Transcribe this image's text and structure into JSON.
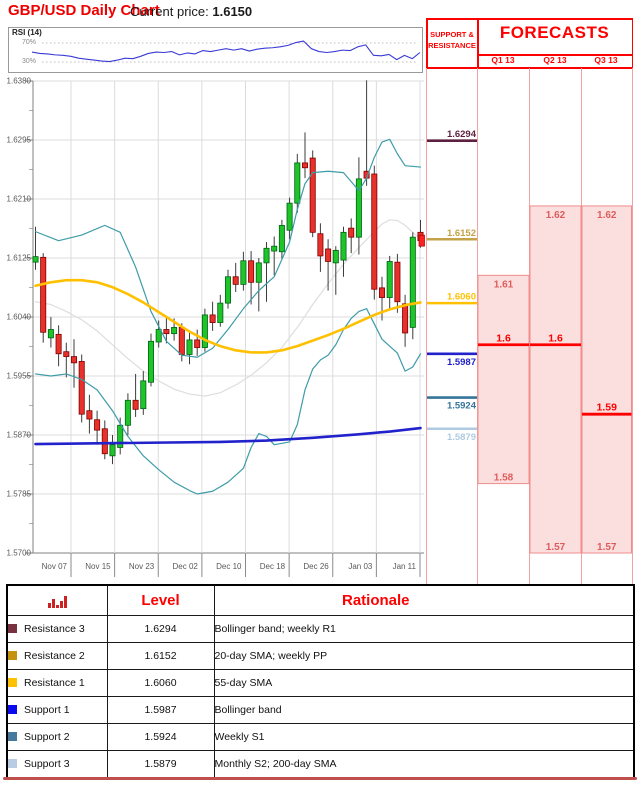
{
  "header": {
    "title": "GBP/USD Daily Chart",
    "price_label": "Current price:",
    "price_value": "1.6150"
  },
  "rsi_panel": {
    "label": "RSI (14)",
    "upper_tick": "70%",
    "lower_tick": "30%",
    "line_color": "#3a3ad6"
  },
  "chart_data": [
    {
      "type": "candlestick",
      "title": "GBP/USD Daily Chart",
      "ylim": [
        1.57,
        1.638
      ],
      "y_ticks": [
        "1.6380",
        "1.6295",
        "1.6210",
        "1.6125",
        "1.6040",
        "1.5955",
        "1.5870",
        "1.5785",
        "1.5700"
      ],
      "x_tick_labels": [
        "Nov 07",
        "Nov 15",
        "Nov 23",
        "Dec 02",
        "Dec 10",
        "Dec 18",
        "Dec 26",
        "Jan 03",
        "Jan 11"
      ],
      "grid": true,
      "current_price": 1.615,
      "up_color": "#1fc32a",
      "up_border": "#006414",
      "down_color": "#e8312a",
      "down_border": "#7f0000",
      "wick_color": "#3c3c3c",
      "candles": [
        [
          1.6119,
          1.617,
          1.6108,
          1.6127
        ],
        [
          1.6126,
          1.6132,
          1.6003,
          1.6018
        ],
        [
          1.601,
          1.604,
          1.5996,
          1.6022
        ],
        [
          1.6015,
          1.6028,
          1.5969,
          1.5987
        ],
        [
          1.599,
          1.6003,
          1.5953,
          1.5983
        ],
        [
          1.5983,
          1.6008,
          1.5938,
          1.5974
        ],
        [
          1.5976,
          1.5986,
          1.5888,
          1.59
        ],
        [
          1.5905,
          1.5928,
          1.5872,
          1.5893
        ],
        [
          1.5892,
          1.5905,
          1.5856,
          1.5877
        ],
        [
          1.5879,
          1.5891,
          1.5835,
          1.5843
        ],
        [
          1.584,
          1.587,
          1.5828,
          1.5856
        ],
        [
          1.5852,
          1.5895,
          1.5842,
          1.5884
        ],
        [
          1.5884,
          1.593,
          1.587,
          1.592
        ],
        [
          1.592,
          1.5958,
          1.5896,
          1.5907
        ],
        [
          1.5908,
          1.5962,
          1.5899,
          1.5948
        ],
        [
          1.5946,
          1.6016,
          1.594,
          1.6005
        ],
        [
          1.6004,
          1.6035,
          1.5996,
          1.6022
        ],
        [
          1.6022,
          1.604,
          1.6002,
          1.6016
        ],
        [
          1.6016,
          1.6038,
          1.6006,
          1.6025
        ],
        [
          1.6025,
          1.6031,
          1.5976,
          1.5986
        ],
        [
          1.5986,
          1.6018,
          1.5972,
          1.6007
        ],
        [
          1.6007,
          1.6022,
          1.5984,
          1.5996
        ],
        [
          1.5996,
          1.6052,
          1.599,
          1.6043
        ],
        [
          1.6043,
          1.6062,
          1.602,
          1.6032
        ],
        [
          1.6032,
          1.6072,
          1.6026,
          1.606
        ],
        [
          1.606,
          1.6108,
          1.6052,
          1.6098
        ],
        [
          1.6098,
          1.6118,
          1.6076,
          1.6087
        ],
        [
          1.6087,
          1.6134,
          1.6078,
          1.6121
        ],
        [
          1.6121,
          1.6135,
          1.6058,
          1.609
        ],
        [
          1.609,
          1.6125,
          1.6048,
          1.6118
        ],
        [
          1.6118,
          1.6148,
          1.6062,
          1.6139
        ],
        [
          1.6135,
          1.6156,
          1.61,
          1.6142
        ],
        [
          1.6134,
          1.618,
          1.6124,
          1.6172
        ],
        [
          1.6165,
          1.6212,
          1.6152,
          1.6204
        ],
        [
          1.6204,
          1.6275,
          1.619,
          1.6262
        ],
        [
          1.6262,
          1.6306,
          1.624,
          1.6255
        ],
        [
          1.6269,
          1.628,
          1.6155,
          1.6162
        ],
        [
          1.616,
          1.6175,
          1.6105,
          1.6128
        ],
        [
          1.6138,
          1.6152,
          1.6078,
          1.612
        ],
        [
          1.6118,
          1.6142,
          1.6072,
          1.6136
        ],
        [
          1.6122,
          1.617,
          1.6098,
          1.6162
        ],
        [
          1.6168,
          1.6182,
          1.6132,
          1.6155
        ],
        [
          1.6155,
          1.627,
          1.613,
          1.6239
        ],
        [
          1.625,
          1.6381,
          1.6229,
          1.624
        ],
        [
          1.6246,
          1.6258,
          1.6065,
          1.608
        ],
        [
          1.6082,
          1.6098,
          1.6035,
          1.6068
        ],
        [
          1.6068,
          1.6128,
          1.6052,
          1.612
        ],
        [
          1.6119,
          1.6131,
          1.6046,
          1.6062
        ],
        [
          1.6059,
          1.6072,
          1.5997,
          1.6017
        ],
        [
          1.6025,
          1.6162,
          1.6008,
          1.6155
        ],
        [
          1.6162,
          1.618,
          1.614,
          1.615
        ]
      ],
      "overlays": [
        {
          "name": "sma-20",
          "color": "#dedede",
          "width": 1.2,
          "points": [
            [
              0,
              1.6062
            ],
            [
              2,
              1.6058
            ],
            [
              4,
              1.6048
            ],
            [
              6,
              1.6036
            ],
            [
              8,
              1.602
            ],
            [
              10,
              1.6
            ],
            [
              12,
              1.598
            ],
            [
              14,
              1.5962
            ],
            [
              16,
              1.5948
            ],
            [
              18,
              1.5936
            ],
            [
              20,
              1.5929
            ],
            [
              22,
              1.5926
            ],
            [
              24,
              1.5931
            ],
            [
              26,
              1.5942
            ],
            [
              28,
              1.5956
            ],
            [
              30,
              1.5974
            ],
            [
              32,
              1.5996
            ],
            [
              34,
              1.6025
            ],
            [
              36,
              1.6058
            ],
            [
              38,
              1.6088
            ],
            [
              40,
              1.6116
            ],
            [
              42,
              1.614
            ],
            [
              44,
              1.6163
            ],
            [
              45,
              1.6174
            ],
            [
              46,
              1.618
            ],
            [
              47,
              1.6179
            ],
            [
              48,
              1.6172
            ],
            [
              49,
              1.6162
            ],
            [
              50,
              1.6152
            ]
          ]
        },
        {
          "name": "bollinger-upper",
          "color": "#3d9ca8",
          "width": 1.2,
          "points": [
            [
              0,
              1.6163
            ],
            [
              3,
              1.615
            ],
            [
              6,
              1.6158
            ],
            [
              9,
              1.6172
            ],
            [
              11,
              1.6162
            ],
            [
              13,
              1.6112
            ],
            [
              15,
              1.6048
            ],
            [
              17,
              1.6005
            ],
            [
              19,
              1.5985
            ],
            [
              21,
              1.5982
            ],
            [
              23,
              1.5995
            ],
            [
              25,
              1.6022
            ],
            [
              27,
              1.6052
            ],
            [
              29,
              1.6078
            ],
            [
              31,
              1.6098
            ],
            [
              33,
              1.6148
            ],
            [
              34,
              1.6195
            ],
            [
              35,
              1.6232
            ],
            [
              36,
              1.6248
            ],
            [
              38,
              1.625
            ],
            [
              40,
              1.6248
            ],
            [
              41,
              1.6235
            ],
            [
              42,
              1.6222
            ],
            [
              43,
              1.624
            ],
            [
              44,
              1.627
            ],
            [
              45,
              1.6292
            ],
            [
              46,
              1.6296
            ],
            [
              47,
              1.6275
            ],
            [
              48,
              1.6258
            ],
            [
              50,
              1.6256
            ]
          ]
        },
        {
          "name": "bollinger-lower",
          "color": "#3d9ca8",
          "width": 1.2,
          "points": [
            [
              0,
              1.5958
            ],
            [
              2,
              1.5955
            ],
            [
              4,
              1.5958
            ],
            [
              6,
              1.595
            ],
            [
              8,
              1.5935
            ],
            [
              10,
              1.5905
            ],
            [
              12,
              1.5868
            ],
            [
              14,
              1.584
            ],
            [
              16,
              1.582
            ],
            [
              18,
              1.5802
            ],
            [
              20,
              1.579
            ],
            [
              21,
              1.5785
            ],
            [
              23,
              1.5789
            ],
            [
              25,
              1.5802
            ],
            [
              27,
              1.5822
            ],
            [
              28,
              1.5852
            ],
            [
              29,
              1.5872
            ],
            [
              30,
              1.5868
            ],
            [
              31,
              1.5856
            ],
            [
              33,
              1.586
            ],
            [
              34,
              1.5885
            ],
            [
              35,
              1.5935
            ],
            [
              36,
              1.5965
            ],
            [
              37,
              1.5978
            ],
            [
              38,
              1.5985
            ],
            [
              39,
              1.6
            ],
            [
              40,
              1.6022
            ],
            [
              41,
              1.6038
            ],
            [
              42,
              1.6048
            ],
            [
              43,
              1.6052
            ],
            [
              44,
              1.603
            ],
            [
              45,
              1.6008
            ],
            [
              46,
              1.5998
            ],
            [
              47,
              1.5988
            ],
            [
              48,
              1.5962
            ],
            [
              49,
              1.5968
            ],
            [
              50,
              1.5987
            ]
          ]
        },
        {
          "name": "sma-55",
          "color": "#ffc000",
          "width": 2.6,
          "points": [
            [
              0,
              1.6085
            ],
            [
              2,
              1.609
            ],
            [
              4,
              1.6093
            ],
            [
              6,
              1.6093
            ],
            [
              8,
              1.609
            ],
            [
              10,
              1.6083
            ],
            [
              12,
              1.6073
            ],
            [
              14,
              1.6061
            ],
            [
              16,
              1.6047
            ],
            [
              18,
              1.6033
            ],
            [
              20,
              1.6019
            ],
            [
              22,
              1.6007
            ],
            [
              24,
              1.5998
            ],
            [
              26,
              1.5992
            ],
            [
              28,
              1.5989
            ],
            [
              30,
              1.5989
            ],
            [
              32,
              1.5992
            ],
            [
              34,
              1.5998
            ],
            [
              36,
              1.6006
            ],
            [
              38,
              1.6014
            ],
            [
              40,
              1.6023
            ],
            [
              42,
              1.6033
            ],
            [
              44,
              1.6043
            ],
            [
              46,
              1.6051
            ],
            [
              48,
              1.6057
            ],
            [
              50,
              1.6061
            ]
          ]
        },
        {
          "name": "sma-200",
          "color": "#2222cc",
          "width": 2.6,
          "points": [
            [
              0,
              1.5857
            ],
            [
              8,
              1.5858
            ],
            [
              16,
              1.5859
            ],
            [
              24,
              1.586
            ],
            [
              30,
              1.5862
            ],
            [
              36,
              1.5866
            ],
            [
              42,
              1.5871
            ],
            [
              46,
              1.5875
            ],
            [
              50,
              1.588
            ]
          ]
        }
      ]
    },
    {
      "type": "line",
      "title": "RSI (14)",
      "ylim": [
        0,
        100
      ],
      "y_ticks": [
        "70%",
        "30%"
      ],
      "legend_position": "none",
      "values": [
        51,
        48,
        47,
        45,
        44,
        42,
        38,
        36,
        34,
        32,
        31,
        34,
        38,
        37,
        42,
        48,
        51,
        50,
        52,
        45,
        49,
        47,
        54,
        52,
        55,
        58,
        55,
        58,
        53,
        57,
        59,
        60,
        62,
        65,
        71,
        74,
        58,
        52,
        50,
        52,
        55,
        54,
        62,
        66,
        44,
        43,
        46,
        35,
        44,
        37,
        50
      ]
    }
  ],
  "sr_panel": {
    "column_header": "SUPPORT & RESISTANCE",
    "forecasts_title": "FORECASTS",
    "quarters": [
      "Q1 13",
      "Q2 13",
      "Q3 13"
    ],
    "levels": [
      {
        "name": "Resistance 3",
        "value": "1.6294",
        "color": "#5c1f3d",
        "side": "above"
      },
      {
        "name": "Resistance 2",
        "value": "1.6152",
        "color": "#c3a249",
        "side": "above"
      },
      {
        "name": "Resistance 1",
        "value": "1.6060",
        "color": "#ffc000",
        "side": "above"
      },
      {
        "name": "Support 1",
        "value": "1.5987",
        "color": "#2222cc",
        "side": "below"
      },
      {
        "name": "Support 2",
        "value": "1.5924",
        "color": "#35749b",
        "side": "below"
      },
      {
        "name": "Support 3",
        "value": "1.5879",
        "color": "#aecbe3",
        "side": "below"
      }
    ],
    "forecasts": [
      {
        "quarter": "Q1 13",
        "high": 1.61,
        "central": 1.6,
        "low": 1.58,
        "high_label": "1.61",
        "central_label": "1.6",
        "low_label": "1.58"
      },
      {
        "quarter": "Q2 13",
        "high": 1.62,
        "central": 1.6,
        "low": 1.57,
        "high_label": "1.62",
        "central_label": "1.6",
        "low_label": "1.57"
      },
      {
        "quarter": "Q3 13",
        "high": 1.62,
        "central": 1.59,
        "low": 1.57,
        "high_label": "1.62",
        "central_label": "1.59",
        "low_label": "1.57"
      }
    ],
    "box_fill": "#fbdcdc",
    "box_border": "#f08c8c",
    "central_color": "#ff0000",
    "range_label_color": "#e05c5c"
  },
  "table": {
    "level_header": "Level",
    "rationale_header": "Rationale",
    "rows": [
      {
        "label": "Resistance 3",
        "color": "#79303f",
        "level": "1.6294",
        "rationale": "Bollinger band; weekly R1"
      },
      {
        "label": "Resistance 2",
        "color": "#c3920e",
        "level": "1.6152",
        "rationale": "20-day SMA; weekly PP"
      },
      {
        "label": "Resistance 1",
        "color": "#ffc000",
        "level": "1.6060",
        "rationale": "55-day SMA"
      },
      {
        "label": "Support 1",
        "color": "#0a0af0",
        "level": "1.5987",
        "rationale": "Bollinger band"
      },
      {
        "label": "Support 2",
        "color": "#46799e",
        "level": "1.5924",
        "rationale": "Weekly S1"
      },
      {
        "label": "Support 3",
        "color": "#b8cce4",
        "level": "1.5879",
        "rationale": "Monthly S2; 200-day SMA"
      }
    ]
  }
}
